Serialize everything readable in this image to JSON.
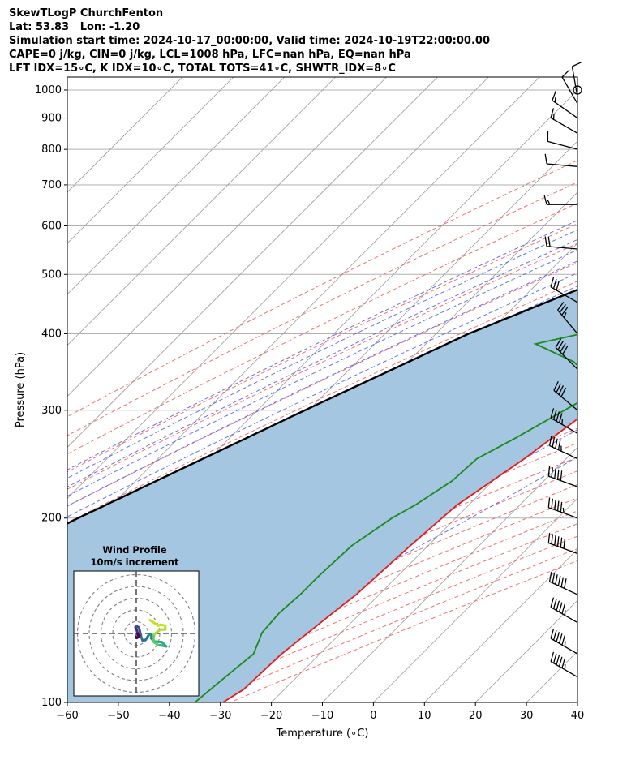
{
  "header": {
    "line1": "SkewTLogP ChurchFenton",
    "line2": "Lat: 53.83   Lon: -1.20",
    "line3": "Simulation start time: 2024-10-17_00:00:00, Valid time: 2024-10-19T22:00:00.00",
    "line4": "CAPE=0 j/kg, CIN=0 j/kg, LCL=1008 hPa, LFC=nan hPa, EQ=nan hPa",
    "line5": "LFT IDX=15∘C, K IDX=10∘C, TOTAL TOTS=41∘C, SHWTR_IDX=8∘C"
  },
  "chart_data": {
    "type": "line",
    "xlabel": "Temperature (∘C)",
    "ylabel": "Pressure (hPa)",
    "xlim": [
      -60,
      40
    ],
    "ylim": [
      1050,
      100
    ],
    "y_scale": "log",
    "xticks": [
      "−60",
      "−50",
      "−40",
      "−30",
      "−20",
      "−10",
      "0",
      "10",
      "20",
      "30",
      "40"
    ],
    "yticks": [
      "100",
      "200",
      "300",
      "400",
      "500",
      "600",
      "700",
      "800",
      "900",
      "1000"
    ],
    "grid": true,
    "colors": {
      "temperature": "#e41a1c",
      "dewpoint": "#1a8a1a",
      "parcel": "#000000",
      "shade": "#a4c6e0",
      "dry_adiabat": "#e85a5a",
      "moist_adiabat": "#4a5ae8",
      "mixing_ratio": "#9a3ad0",
      "isotherm": "#9a9a9a"
    },
    "temperature": [
      {
        "p": 1008,
        "t": 7.5
      },
      {
        "p": 1000,
        "t": 10.5
      },
      {
        "p": 975,
        "t": 11.3
      },
      {
        "p": 950,
        "t": 10.6
      },
      {
        "p": 900,
        "t": 10.2
      },
      {
        "p": 850,
        "t": 10.8
      },
      {
        "p": 800,
        "t": 11.0
      },
      {
        "p": 775,
        "t": 10.0
      },
      {
        "p": 750,
        "t": 9.4
      },
      {
        "p": 725,
        "t": 10.1
      },
      {
        "p": 700,
        "t": 10.2
      },
      {
        "p": 650,
        "t": 10.2
      },
      {
        "p": 600,
        "t": 6.5
      },
      {
        "p": 550,
        "t": 3.5
      },
      {
        "p": 500,
        "t": 0.0
      },
      {
        "p": 450,
        "t": -4.5
      },
      {
        "p": 400,
        "t": -9.0
      },
      {
        "p": 350,
        "t": -11.5
      },
      {
        "p": 300,
        "t": -15.0
      },
      {
        "p": 250,
        "t": -18.2
      },
      {
        "p": 210,
        "t": -22.3
      },
      {
        "p": 200,
        "t": -22.7
      },
      {
        "p": 180,
        "t": -23.5
      },
      {
        "p": 150,
        "t": -24.5
      },
      {
        "p": 140,
        "t": -25.5
      },
      {
        "p": 120,
        "t": -27.5
      },
      {
        "p": 105,
        "t": -28.0
      },
      {
        "p": 100,
        "t": -29.5
      }
    ],
    "dewpoint": [
      {
        "p": 1008,
        "t": 6.5
      },
      {
        "p": 1000,
        "t": 7.0
      },
      {
        "p": 980,
        "t": 8.2
      },
      {
        "p": 950,
        "t": 5.8
      },
      {
        "p": 900,
        "t": 2.5
      },
      {
        "p": 850,
        "t": 1.6
      },
      {
        "p": 825,
        "t": 3.0
      },
      {
        "p": 800,
        "t": 6.0
      },
      {
        "p": 775,
        "t": 6.2
      },
      {
        "p": 750,
        "t": 5.0
      },
      {
        "p": 725,
        "t": 2.0
      },
      {
        "p": 700,
        "t": -3.0
      },
      {
        "p": 660,
        "t": -42.5
      },
      {
        "p": 650,
        "t": -44.5
      },
      {
        "p": 600,
        "t": -35.0
      },
      {
        "p": 560,
        "t": -35.0
      },
      {
        "p": 520,
        "t": -38.5
      },
      {
        "p": 500,
        "t": -34.5
      },
      {
        "p": 470,
        "t": -30.0
      },
      {
        "p": 440,
        "t": -27.5
      },
      {
        "p": 400,
        "t": -31.5
      },
      {
        "p": 385,
        "t": -38.5
      },
      {
        "p": 360,
        "t": -27.5
      },
      {
        "p": 340,
        "t": -21.5
      },
      {
        "p": 310,
        "t": -18.5
      },
      {
        "p": 270,
        "t": -24.0
      },
      {
        "p": 250,
        "t": -27.5
      },
      {
        "p": 230,
        "t": -28.0
      },
      {
        "p": 210,
        "t": -30.5
      },
      {
        "p": 200,
        "t": -32.5
      },
      {
        "p": 180,
        "t": -35.0
      },
      {
        "p": 160,
        "t": -35.5
      },
      {
        "p": 150,
        "t": -35.5
      },
      {
        "p": 140,
        "t": -36.0
      },
      {
        "p": 130,
        "t": -35.5
      },
      {
        "p": 120,
        "t": -33.0
      },
      {
        "p": 110,
        "t": -34.0
      },
      {
        "p": 100,
        "t": -35.0
      }
    ],
    "parcel": [
      {
        "p": 1008,
        "t": 7.3
      },
      {
        "p": 900,
        "t": 1.0
      },
      {
        "p": 800,
        "t": -6.1
      },
      {
        "p": 700,
        "t": -14.2
      },
      {
        "p": 600,
        "t": -24.1
      },
      {
        "p": 500,
        "t": -36.5
      },
      {
        "p": 400,
        "t": -53.6
      },
      {
        "p": 300,
        "t": -70.7
      },
      {
        "p": 200,
        "t": -94.0
      },
      {
        "p": 100,
        "t": -130.0
      }
    ],
    "wind_barbs": [
      {
        "p": 1000,
        "speed_kt": 3,
        "dir_deg": 0
      },
      {
        "p": 975,
        "speed_kt": 8,
        "dir_deg": 350
      },
      {
        "p": 950,
        "speed_kt": 12,
        "dir_deg": 330
      },
      {
        "p": 900,
        "speed_kt": 15,
        "dir_deg": 305
      },
      {
        "p": 850,
        "speed_kt": 14,
        "dir_deg": 300
      },
      {
        "p": 800,
        "speed_kt": 12,
        "dir_deg": 285
      },
      {
        "p": 750,
        "speed_kt": 10,
        "dir_deg": 275
      },
      {
        "p": 650,
        "speed_kt": 13,
        "dir_deg": 270
      },
      {
        "p": 550,
        "speed_kt": 22,
        "dir_deg": 275
      },
      {
        "p": 450,
        "speed_kt": 30,
        "dir_deg": 300
      },
      {
        "p": 400,
        "speed_kt": 35,
        "dir_deg": 320
      },
      {
        "p": 350,
        "speed_kt": 40,
        "dir_deg": 315
      },
      {
        "p": 300,
        "speed_kt": 40,
        "dir_deg": 310
      },
      {
        "p": 275,
        "speed_kt": 45,
        "dir_deg": 300
      },
      {
        "p": 250,
        "speed_kt": 45,
        "dir_deg": 295
      },
      {
        "p": 225,
        "speed_kt": 50,
        "dir_deg": 290
      },
      {
        "p": 200,
        "speed_kt": 55,
        "dir_deg": 290
      },
      {
        "p": 175,
        "speed_kt": 60,
        "dir_deg": 290
      },
      {
        "p": 150,
        "speed_kt": 60,
        "dir_deg": 295
      },
      {
        "p": 135,
        "speed_kt": 55,
        "dir_deg": 300
      },
      {
        "p": 120,
        "speed_kt": 55,
        "dir_deg": 300
      },
      {
        "p": 110,
        "speed_kt": 55,
        "dir_deg": 300
      }
    ],
    "inset": {
      "title": "Wind Profile",
      "subtitle": "10m/s increment",
      "rings_ms": [
        10,
        20,
        30,
        40,
        50
      ],
      "hodograph": [
        {
          "u": -0.3,
          "v": -3.0
        },
        {
          "u": 0.5,
          "v": -3.8
        },
        {
          "u": 2.1,
          "v": -2.8
        },
        {
          "u": 1.6,
          "v": -1.2
        },
        {
          "u": 0.8,
          "v": 1.5
        },
        {
          "u": 0.3,
          "v": 3.2
        },
        {
          "u": -0.7,
          "v": 5.3
        },
        {
          "u": 0.6,
          "v": 6.0
        },
        {
          "u": 2.0,
          "v": 5.3
        },
        {
          "u": 2.8,
          "v": 3.0
        },
        {
          "u": 4.3,
          "v": -3.3
        },
        {
          "u": 5.4,
          "v": -6.1
        },
        {
          "u": 8.0,
          "v": -5.4
        },
        {
          "u": 10.5,
          "v": -1.4
        },
        {
          "u": 13.0,
          "v": -0.7
        },
        {
          "u": 12.6,
          "v": -4.0
        },
        {
          "u": 15.0,
          "v": -6.7
        },
        {
          "u": 21.8,
          "v": -7.4
        },
        {
          "u": 25.5,
          "v": -11.0
        },
        {
          "u": 18.5,
          "v": -9.7
        },
        {
          "u": 15.1,
          "v": -7.4
        },
        {
          "u": 14.4,
          "v": -4.0
        },
        {
          "u": 15.4,
          "v": -0.7
        },
        {
          "u": 20.5,
          "v": 3.4
        },
        {
          "u": 24.8,
          "v": 3.4
        },
        {
          "u": 24.6,
          "v": 6.7
        },
        {
          "u": 20.5,
          "v": 7.4
        },
        {
          "u": 18.8,
          "v": 6.7
        },
        {
          "u": 11.6,
          "v": 11.4
        }
      ]
    }
  }
}
